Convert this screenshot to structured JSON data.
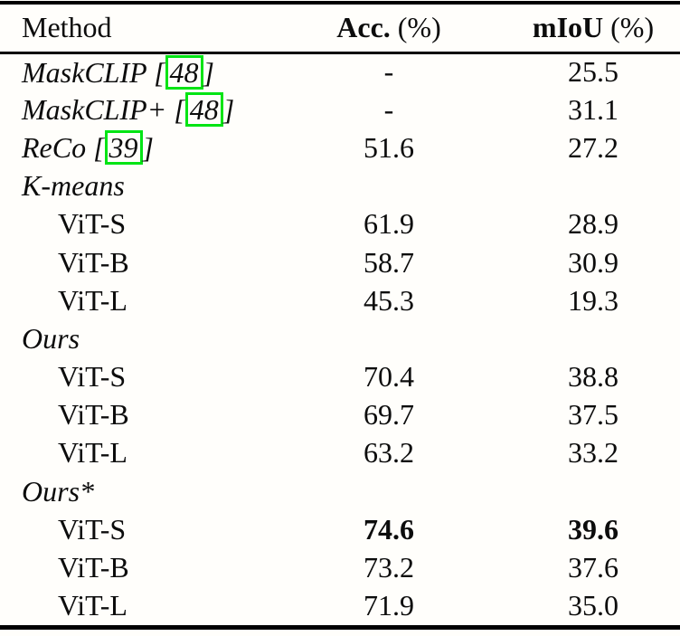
{
  "table": {
    "header": {
      "method": "Method",
      "acc_bold": "Acc.",
      "acc_unit": " (%)",
      "miou_bold": "mIoU",
      "miou_unit": " (%)"
    },
    "rows": [
      {
        "pre": "MaskCLIP [",
        "cite": "48",
        "post": "]",
        "acc": "-",
        "miou": "25.5"
      },
      {
        "pre": "MaskCLIP+ [",
        "cite": "48",
        "post": "]",
        "acc": "-",
        "miou": "31.1"
      },
      {
        "pre": "ReCo [",
        "cite": "39",
        "post": "]",
        "acc": "51.6",
        "miou": "27.2"
      },
      {
        "method": "K-means",
        "acc": "",
        "miou": ""
      },
      {
        "method": "ViT-S",
        "acc": "61.9",
        "miou": "28.9"
      },
      {
        "method": "ViT-B",
        "acc": "58.7",
        "miou": "30.9"
      },
      {
        "method": "ViT-L",
        "acc": "45.3",
        "miou": "19.3"
      },
      {
        "method": "Ours",
        "acc": "",
        "miou": ""
      },
      {
        "method": "ViT-S",
        "acc": "70.4",
        "miou": "38.8"
      },
      {
        "method": "ViT-B",
        "acc": "69.7",
        "miou": "37.5"
      },
      {
        "method": "ViT-L",
        "acc": "63.2",
        "miou": "33.2"
      },
      {
        "method": "Ours*",
        "acc": "",
        "miou": ""
      },
      {
        "method": "ViT-S",
        "acc": "74.6",
        "miou": "39.6"
      },
      {
        "method": "ViT-B",
        "acc": "73.2",
        "miou": "37.6"
      },
      {
        "method": "ViT-L",
        "acc": "71.9",
        "miou": "35.0"
      }
    ],
    "colors": {
      "citation_box_green": "#00e414",
      "text": "#0c0c0c",
      "rule": "#000000",
      "background": "#fffefb"
    }
  },
  "chart_data": {
    "type": "table",
    "columns": [
      "Method",
      "Acc. (%)",
      "mIoU (%)"
    ],
    "rows": [
      [
        "MaskCLIP [48]",
        null,
        25.5
      ],
      [
        "MaskCLIP+ [48]",
        null,
        31.1
      ],
      [
        "ReCo [39]",
        51.6,
        27.2
      ],
      [
        "K-means ViT-S",
        61.9,
        28.9
      ],
      [
        "K-means ViT-B",
        58.7,
        30.9
      ],
      [
        "K-means ViT-L",
        45.3,
        19.3
      ],
      [
        "Ours ViT-S",
        70.4,
        38.8
      ],
      [
        "Ours ViT-B",
        69.7,
        37.5
      ],
      [
        "Ours ViT-L",
        63.2,
        33.2
      ],
      [
        "Ours* ViT-S",
        74.6,
        39.6
      ],
      [
        "Ours* ViT-B",
        73.2,
        37.6
      ],
      [
        "Ours* ViT-L",
        71.9,
        35.0
      ]
    ],
    "bold_cells": [
      "Ours* ViT-S Acc 74.6",
      "Ours* ViT-S mIoU 39.6"
    ]
  }
}
